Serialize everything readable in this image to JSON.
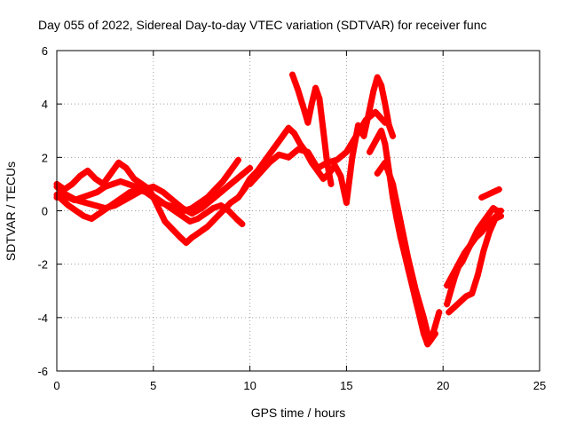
{
  "chart_data": {
    "type": "scatter",
    "title": "Day 055 of 2022, Sidereal Day-to-day VTEC variation (SDTVAR) for receiver func",
    "xlabel": "GPS time / hours",
    "ylabel": "SDTVAR / TECUs",
    "xlim": [
      0,
      25
    ],
    "ylim": [
      -6,
      6
    ],
    "x_ticks": [
      0,
      5,
      10,
      15,
      20,
      25
    ],
    "y_ticks": [
      -6,
      -4,
      -2,
      0,
      2,
      4,
      6
    ],
    "x_tick_labels": [
      "0",
      "5",
      "10",
      "15",
      "20",
      "25"
    ],
    "y_tick_labels": [
      "-6",
      "-4",
      "-2",
      "0",
      "2",
      "4",
      "6"
    ],
    "grid": true,
    "legend": "none",
    "marker": "plus",
    "color": "#ff0000",
    "series": [
      {
        "x": [
          0.0,
          0.3,
          0.6,
          0.9,
          1.3,
          1.7,
          2.1,
          2.5,
          2.9,
          3.3,
          3.7,
          4.1,
          4.5,
          4.9,
          5.3,
          5.7,
          6.1,
          6.5,
          6.9,
          7.3,
          7.7,
          8.1,
          8.5,
          8.9,
          9.3,
          9.6
        ],
        "y": [
          0.9,
          0.7,
          0.5,
          0.4,
          0.5,
          0.6,
          0.7,
          0.9,
          1.0,
          1.1,
          1.0,
          0.9,
          0.8,
          0.6,
          0.4,
          0.2,
          0.0,
          -0.2,
          -0.4,
          -0.3,
          -0.1,
          0.1,
          0.2,
          0.0,
          -0.3,
          -0.5
        ]
      },
      {
        "x": [
          0.0,
          0.3,
          0.6,
          1.0,
          1.4,
          1.8,
          2.2,
          2.6,
          3.0,
          3.4,
          3.8,
          4.2,
          4.6,
          5.0,
          5.4,
          5.8,
          6.2,
          6.6,
          7.0,
          7.4,
          7.8,
          8.2,
          8.6,
          9.0,
          9.4
        ],
        "y": [
          0.6,
          0.4,
          0.2,
          0.0,
          -0.2,
          -0.3,
          -0.1,
          0.1,
          0.3,
          0.5,
          0.7,
          0.8,
          0.7,
          0.5,
          0.3,
          0.2,
          0.1,
          0.0,
          0.1,
          0.3,
          0.5,
          0.8,
          1.1,
          1.5,
          1.9
        ]
      },
      {
        "x": [
          0.0,
          0.4,
          0.8,
          1.2,
          1.6,
          2.0,
          2.4,
          2.8,
          3.2,
          3.6,
          4.0,
          4.4,
          4.8,
          5.2,
          5.6,
          6.0,
          6.4,
          6.7,
          7.0,
          7.4,
          7.8,
          8.2,
          8.6,
          9.0,
          9.4,
          9.8
        ],
        "y": [
          1.0,
          0.8,
          1.0,
          1.3,
          1.5,
          1.2,
          1.0,
          1.4,
          1.8,
          1.6,
          1.2,
          1.0,
          0.8,
          0.2,
          -0.4,
          -0.7,
          -1.0,
          -1.2,
          -1.0,
          -0.8,
          -0.6,
          -0.3,
          0.0,
          0.3,
          0.5,
          0.9
        ]
      },
      {
        "x": [
          0.0,
          0.5,
          1.0,
          1.5,
          2.0,
          2.5,
          3.0,
          3.5,
          4.0,
          4.5,
          5.0,
          5.5,
          6.0,
          6.5,
          7.0,
          7.5,
          8.0,
          8.5,
          9.0,
          9.5,
          10.0
        ],
        "y": [
          0.5,
          0.6,
          0.4,
          0.3,
          0.2,
          0.1,
          0.2,
          0.4,
          0.6,
          0.8,
          0.9,
          0.7,
          0.4,
          0.1,
          -0.1,
          0.1,
          0.4,
          0.7,
          1.0,
          1.3,
          1.6
        ]
      },
      {
        "x": [
          9.6,
          10.0,
          10.4,
          10.8,
          11.2,
          11.6,
          12.0,
          12.3,
          12.6,
          12.9,
          13.2,
          13.5,
          13.8,
          14.1,
          14.4,
          14.7,
          15.0,
          15.3,
          15.6,
          15.9,
          16.2,
          16.4,
          16.6,
          16.8,
          17.0,
          17.2,
          17.4
        ],
        "y": [
          0.7,
          1.2,
          1.5,
          1.9,
          2.3,
          2.7,
          3.1,
          2.9,
          2.5,
          2.2,
          1.8,
          1.5,
          1.2,
          1.4,
          1.7,
          1.3,
          0.3,
          2.0,
          3.2,
          2.8,
          3.8,
          4.5,
          5.0,
          4.7,
          4.0,
          3.2,
          2.8
        ]
      },
      {
        "x": [
          10.0,
          10.5,
          11.0,
          11.5,
          12.0,
          12.5,
          13.0,
          13.5,
          14.0,
          14.5,
          15.0,
          15.5,
          16.0,
          16.5,
          17.0
        ],
        "y": [
          1.0,
          1.4,
          1.8,
          2.1,
          2.0,
          2.3,
          2.2,
          1.6,
          1.8,
          1.9,
          2.2,
          2.8,
          3.4,
          3.7,
          3.3
        ]
      },
      {
        "x": [
          12.2,
          12.5,
          12.8,
          13.0,
          13.2,
          13.4,
          13.6,
          13.8,
          14.0,
          14.2
        ],
        "y": [
          5.1,
          4.5,
          3.8,
          3.3,
          4.0,
          4.6,
          4.2,
          3.0,
          1.8,
          1.0
        ]
      },
      {
        "x": [
          16.2,
          16.5,
          16.8,
          17.0,
          17.2,
          17.4,
          17.6,
          17.8,
          18.0,
          18.2,
          18.4,
          18.6,
          18.8,
          19.0,
          19.2,
          19.4,
          19.6,
          19.8
        ],
        "y": [
          2.2,
          2.6,
          3.0,
          2.5,
          1.5,
          0.5,
          -0.3,
          -1.0,
          -1.6,
          -2.2,
          -2.8,
          -3.4,
          -4.0,
          -4.6,
          -5.0,
          -4.8,
          -4.3,
          -3.8
        ]
      },
      {
        "x": [
          16.6,
          17.0,
          17.4,
          17.8,
          18.2,
          18.6,
          19.0,
          19.3,
          19.6
        ],
        "y": [
          1.4,
          1.8,
          1.0,
          -0.4,
          -1.8,
          -3.0,
          -4.0,
          -4.9,
          -4.6
        ]
      },
      {
        "x": [
          20.2,
          20.4,
          20.6,
          20.8,
          21.0,
          21.2,
          21.4,
          21.6,
          21.8,
          22.0,
          22.2,
          22.4,
          22.6,
          22.8,
          23.0
        ],
        "y": [
          -3.5,
          -3.0,
          -2.5,
          -2.1,
          -1.9,
          -1.6,
          -1.3,
          -1.0,
          -0.7,
          -0.5,
          -0.3,
          -0.1,
          0.1,
          0.0,
          0.0
        ]
      },
      {
        "x": [
          20.2,
          20.5,
          20.8,
          21.1,
          21.4,
          21.7,
          22.0,
          22.3,
          22.6,
          22.9
        ],
        "y": [
          -2.8,
          -2.4,
          -2.0,
          -1.6,
          -1.3,
          -1.0,
          -0.8,
          -0.5,
          -0.3,
          -0.1
        ]
      },
      {
        "x": [
          20.3,
          20.6,
          20.9,
          21.2,
          21.5,
          21.8,
          22.1,
          22.4,
          22.7,
          23.0
        ],
        "y": [
          -3.8,
          -3.6,
          -3.4,
          -3.2,
          -3.1,
          -2.4,
          -1.5,
          -0.8,
          -0.3,
          -0.2
        ]
      },
      {
        "x": [
          22.0,
          22.3,
          22.6,
          22.9
        ],
        "y": [
          0.5,
          0.6,
          0.7,
          0.8
        ]
      }
    ]
  }
}
